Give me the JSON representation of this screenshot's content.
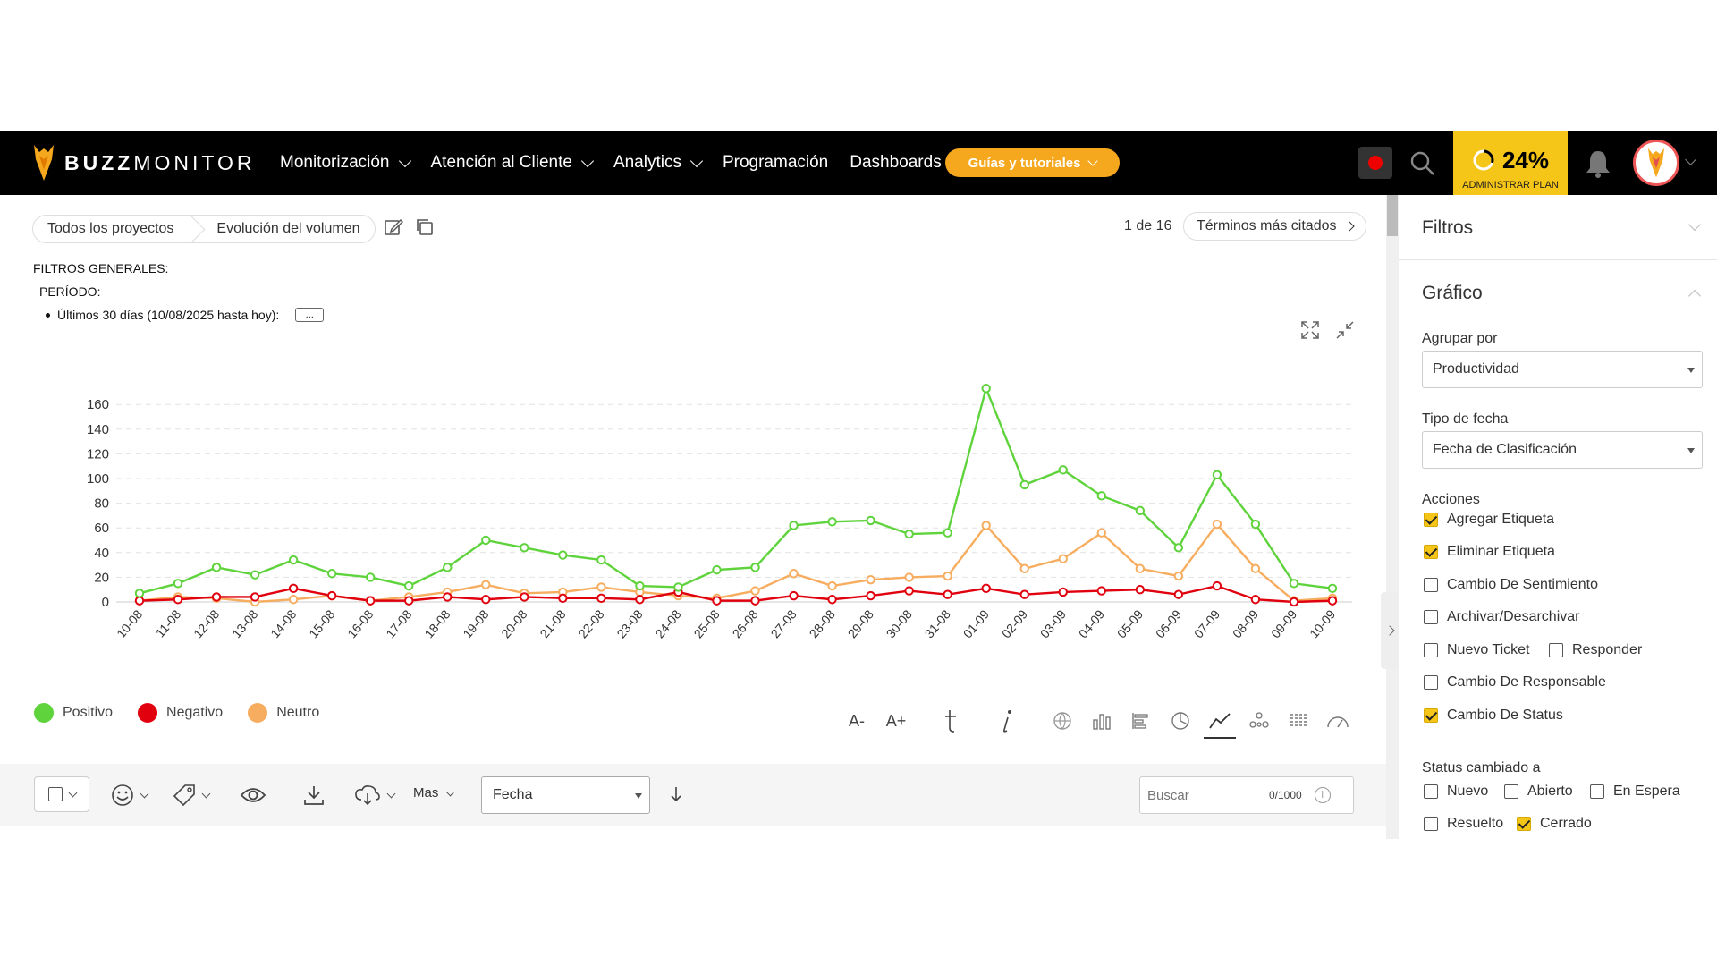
{
  "brand": {
    "name_bold": "BUZZ",
    "name_light": "MONITOR"
  },
  "nav": {
    "items": [
      {
        "label": "Monitorización",
        "has_dropdown": true
      },
      {
        "label": "Atención al Cliente",
        "has_dropdown": true
      },
      {
        "label": "Analytics",
        "has_dropdown": true
      },
      {
        "label": "Programación",
        "has_dropdown": false
      },
      {
        "label": "Dashboards",
        "has_dropdown": false
      }
    ],
    "guides_label": "Guías y tutoriales",
    "plan_percent": "24%",
    "plan_label": "ADMINISTRAR PLAN",
    "accent_color": "#f5a71d",
    "plan_color": "#f5c518"
  },
  "breadcrumb": {
    "root": "Todos los proyectos",
    "current": "Evolución del volumen"
  },
  "pager": {
    "text": "1 de 16",
    "next_label": "Términos más citados"
  },
  "filters": {
    "heading": "FILTROS GENERALES:",
    "period_label": "PERÍODO:",
    "period_value": "Últimos 30 días (10/08/2025 hasta hoy):",
    "more_label": "..."
  },
  "chart_data": {
    "type": "line",
    "categories": [
      "10-08",
      "11-08",
      "12-08",
      "13-08",
      "14-08",
      "15-08",
      "16-08",
      "17-08",
      "18-08",
      "19-08",
      "20-08",
      "21-08",
      "22-08",
      "23-08",
      "24-08",
      "25-08",
      "26-08",
      "27-08",
      "28-08",
      "29-08",
      "30-08",
      "31-08",
      "01-09",
      "02-09",
      "03-09",
      "04-09",
      "05-09",
      "06-09",
      "07-09",
      "08-09",
      "09-09",
      "10-09"
    ],
    "yticks": [
      0,
      20,
      40,
      60,
      80,
      100,
      120,
      140,
      160
    ],
    "ylim": [
      0,
      180
    ],
    "grid": true,
    "series": [
      {
        "name": "Positivo",
        "color": "#5fd33c",
        "values": [
          7,
          15,
          28,
          22,
          34,
          23,
          20,
          13,
          28,
          50,
          44,
          38,
          34,
          13,
          12,
          26,
          28,
          62,
          65,
          66,
          55,
          56,
          173,
          95,
          107,
          86,
          74,
          44,
          103,
          63,
          15,
          11
        ]
      },
      {
        "name": "Negativo",
        "color": "#e0000e",
        "values": [
          1,
          2,
          4,
          4,
          11,
          5,
          1,
          1,
          4,
          2,
          4,
          3,
          3,
          2,
          8,
          1,
          1,
          5,
          2,
          5,
          9,
          6,
          11,
          6,
          8,
          9,
          10,
          6,
          13,
          2,
          0,
          1
        ]
      },
      {
        "name": "Neutro",
        "color": "#f7ad5f",
        "values": [
          1,
          4,
          3,
          0,
          2,
          5,
          1,
          4,
          8,
          14,
          7,
          8,
          12,
          8,
          5,
          3,
          9,
          23,
          13,
          18,
          20,
          21,
          62,
          27,
          35,
          56,
          27,
          21,
          63,
          27,
          1,
          3
        ]
      }
    ]
  },
  "toolbar": {
    "font_smaller": "A-",
    "font_larger": "A+",
    "mas_label": "Mas",
    "sort_select": "Fecha",
    "search_placeholder": "Buscar",
    "search_count": "0/1000"
  },
  "sidebar": {
    "filters_title": "Filtros",
    "chart_title": "Gráfico",
    "group_by_label": "Agrupar por",
    "group_by_value": "Productividad",
    "date_type_label": "Tipo de fecha",
    "date_type_value": "Fecha de Clasificación",
    "actions_label": "Acciones",
    "actions": [
      {
        "label": "Agregar Etiqueta",
        "checked": true
      },
      {
        "label": "Eliminar Etiqueta",
        "checked": true
      },
      {
        "label": "Cambio De Sentimiento",
        "checked": false
      },
      {
        "label": "Archivar/Desarchivar",
        "checked": false
      },
      {
        "label": "Nuevo Ticket",
        "checked": false
      },
      {
        "label": "Responder",
        "checked": false
      },
      {
        "label": "Cambio De Responsable",
        "checked": false
      },
      {
        "label": "Cambio De Status",
        "checked": true
      }
    ],
    "status_label": "Status cambiado a",
    "statuses": [
      {
        "label": "Nuevo",
        "checked": false
      },
      {
        "label": "Abierto",
        "checked": false
      },
      {
        "label": "En Espera",
        "checked": false
      },
      {
        "label": "Resuelto",
        "checked": false
      },
      {
        "label": "Cerrado",
        "checked": true
      }
    ]
  }
}
